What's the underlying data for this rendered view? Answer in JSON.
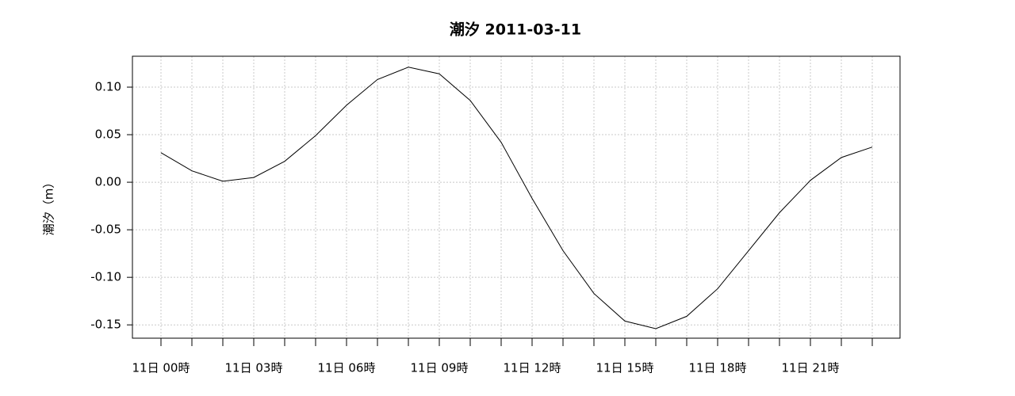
{
  "chart_data": {
    "type": "line",
    "title": "潮汐  2011-03-11",
    "y_label": "潮汐（m）",
    "categories": [
      "11日  00時",
      null,
      null,
      "11日  03時",
      null,
      null,
      "11日  06時",
      null,
      null,
      "11日  09時",
      null,
      null,
      "11日  12時",
      null,
      null,
      "11日  15時",
      null,
      null,
      "11日  18時",
      null,
      null,
      "11日  21時",
      null,
      null
    ],
    "series": [
      {
        "name": "潮汐",
        "color": "#000000",
        "values": [
          0.031,
          0.012,
          0.001,
          0.005,
          0.022,
          0.049,
          0.081,
          0.108,
          0.121,
          0.114,
          0.086,
          0.042,
          -0.017,
          -0.072,
          -0.117,
          -0.146,
          -0.154,
          -0.141,
          -0.112,
          -0.072,
          -0.032,
          0.002,
          0.026,
          0.037
        ]
      }
    ],
    "ylim": [
      -0.164,
      0.1325
    ],
    "yticks": [
      {
        "value": 0.1,
        "label": "0.10"
      },
      0.05,
      {
        "value": 0,
        "label": "0.00"
      },
      -0.05,
      {
        "value": -0.1,
        "label": "-0.10"
      },
      -0.15
    ],
    "grid": true
  }
}
